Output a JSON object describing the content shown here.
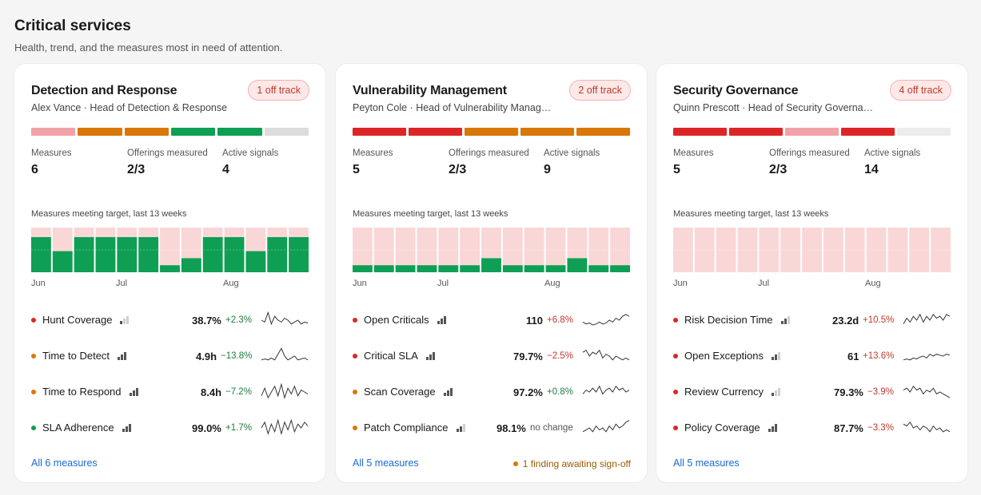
{
  "page": {
    "title": "Critical services",
    "subtitle": "Health, trend, and the measures most in need of attention."
  },
  "colors": {
    "red": "#dc2626",
    "red_light": "#f2a1a8",
    "orange": "#d97706",
    "green": "#0f9f54",
    "grey": "#dcdcdc",
    "grey_light": "#ececec",
    "trend_bg": "#f9d7d7",
    "trend_green": "#0f9f54"
  },
  "cards": [
    {
      "title": "Detection and Response",
      "owner": "Alex Vance · Head of Detection & Response",
      "badge": "1 off track",
      "health": [
        "red_light",
        "orange",
        "orange",
        "green",
        "green",
        "grey"
      ],
      "stats": {
        "measures_label": "Measures",
        "measures": "6",
        "offerings_label": "Offerings measured",
        "offerings": "2/3",
        "signals_label": "Active signals",
        "signals": "4"
      },
      "trend_label": "Measures meeting target, last 13 weeks",
      "trend": [
        1.0,
        0.6,
        1.0,
        1.0,
        1.0,
        1.0,
        0.2,
        0.4,
        1.0,
        1.0,
        0.6,
        1.0,
        1.0
      ],
      "months": [
        "Jun",
        "Jul",
        "Aug"
      ],
      "measures": [
        {
          "name": "Hunt Coverage",
          "dot": "red",
          "bars": 1,
          "value": "38.7%",
          "change": "+2.3%",
          "dir": "down",
          "spark": [
            0.5,
            0.4,
            0.9,
            0.3,
            0.7,
            0.5,
            0.4,
            0.6,
            0.5,
            0.3,
            0.4,
            0.5,
            0.3,
            0.4,
            0.35
          ]
        },
        {
          "name": "Time to Detect",
          "dot": "orange",
          "bars": 3,
          "value": "4.9h",
          "change": "−13.8%",
          "dir": "down",
          "spark": [
            0.3,
            0.35,
            0.3,
            0.4,
            0.3,
            0.6,
            0.9,
            0.5,
            0.3,
            0.4,
            0.5,
            0.3,
            0.35,
            0.4,
            0.3
          ]
        },
        {
          "name": "Time to Respond",
          "dot": "orange",
          "bars": 3,
          "value": "8.4h",
          "change": "−7.2%",
          "dir": "down",
          "spark": [
            0.3,
            0.7,
            0.2,
            0.5,
            0.8,
            0.3,
            0.9,
            0.2,
            0.7,
            0.4,
            0.8,
            0.3,
            0.6,
            0.5,
            0.4
          ]
        },
        {
          "name": "SLA Adherence",
          "dot": "green",
          "bars": 3,
          "value": "99.0%",
          "change": "+1.7%",
          "dir": "down",
          "spark": [
            0.5,
            0.8,
            0.2,
            0.7,
            0.3,
            0.9,
            0.2,
            0.8,
            0.4,
            0.9,
            0.3,
            0.7,
            0.5,
            0.8,
            0.6
          ]
        }
      ],
      "footer_link": "All 6 measures",
      "footer_note": ""
    },
    {
      "title": "Vulnerability Management",
      "owner": "Peyton Cole · Head of Vulnerability Manag…",
      "badge": "2 off track",
      "health": [
        "red",
        "red",
        "orange",
        "orange",
        "orange"
      ],
      "stats": {
        "measures_label": "Measures",
        "measures": "5",
        "offerings_label": "Offerings measured",
        "offerings": "2/3",
        "signals_label": "Active signals",
        "signals": "9"
      },
      "trend_label": "Measures meeting target, last 13 weeks",
      "trend": [
        0.2,
        0.2,
        0.2,
        0.2,
        0.2,
        0.2,
        0.4,
        0.2,
        0.2,
        0.2,
        0.4,
        0.2,
        0.2
      ],
      "months": [
        "Jun",
        "Jul",
        "Aug"
      ],
      "measures": [
        {
          "name": "Open Criticals",
          "dot": "red",
          "bars": 3,
          "value": "110",
          "change": "+6.8%",
          "dir": "up",
          "spark": [
            0.4,
            0.3,
            0.35,
            0.25,
            0.3,
            0.4,
            0.3,
            0.35,
            0.5,
            0.4,
            0.6,
            0.5,
            0.7,
            0.8,
            0.7
          ]
        },
        {
          "name": "Critical SLA",
          "dot": "red",
          "bars": 3,
          "value": "79.7%",
          "change": "−2.5%",
          "dir": "up",
          "spark": [
            0.7,
            0.8,
            0.5,
            0.7,
            0.6,
            0.8,
            0.4,
            0.6,
            0.5,
            0.3,
            0.5,
            0.4,
            0.3,
            0.4,
            0.3
          ]
        },
        {
          "name": "Scan Coverage",
          "dot": "orange",
          "bars": 3,
          "value": "97.2%",
          "change": "+0.8%",
          "dir": "down",
          "spark": [
            0.4,
            0.6,
            0.5,
            0.7,
            0.5,
            0.8,
            0.4,
            0.6,
            0.7,
            0.5,
            0.8,
            0.6,
            0.7,
            0.5,
            0.6
          ]
        },
        {
          "name": "Patch Compliance",
          "dot": "orange",
          "bars": 2,
          "value": "98.1%",
          "change": "no change",
          "dir": "neutral",
          "spark": [
            0.3,
            0.4,
            0.5,
            0.3,
            0.6,
            0.4,
            0.5,
            0.3,
            0.6,
            0.4,
            0.7,
            0.5,
            0.6,
            0.8,
            0.9
          ]
        }
      ],
      "footer_link": "All 5 measures",
      "footer_note": "1 finding awaiting sign-off"
    },
    {
      "title": "Security Governance",
      "owner": "Quinn Prescott · Head of Security Governa…",
      "badge": "4 off track",
      "health": [
        "red",
        "red",
        "red_light",
        "red",
        "grey_light"
      ],
      "stats": {
        "measures_label": "Measures",
        "measures": "5",
        "offerings_label": "Offerings measured",
        "offerings": "2/3",
        "signals_label": "Active signals",
        "signals": "14"
      },
      "trend_label": "Measures meeting target, last 13 weeks",
      "trend": [
        0,
        0,
        0,
        0,
        0,
        0,
        0,
        0,
        0,
        0,
        0,
        0,
        0
      ],
      "months": [
        "Jun",
        "Jul",
        "Aug"
      ],
      "measures": [
        {
          "name": "Risk Decision Time",
          "dot": "red",
          "bars": 2,
          "value": "23.2d",
          "change": "+10.5%",
          "dir": "up",
          "spark": [
            0.3,
            0.6,
            0.4,
            0.7,
            0.5,
            0.8,
            0.4,
            0.7,
            0.5,
            0.8,
            0.6,
            0.7,
            0.5,
            0.8,
            0.7
          ]
        },
        {
          "name": "Open Exceptions",
          "dot": "red",
          "bars": 2,
          "value": "61",
          "change": "+13.6%",
          "dir": "up",
          "spark": [
            0.3,
            0.35,
            0.3,
            0.4,
            0.35,
            0.45,
            0.5,
            0.4,
            0.6,
            0.5,
            0.6,
            0.55,
            0.5,
            0.6,
            0.55
          ]
        },
        {
          "name": "Review Currency",
          "dot": "red",
          "bars": 1,
          "value": "79.3%",
          "change": "−3.9%",
          "dir": "up",
          "spark": [
            0.6,
            0.7,
            0.5,
            0.8,
            0.6,
            0.7,
            0.4,
            0.6,
            0.5,
            0.7,
            0.4,
            0.5,
            0.4,
            0.3,
            0.2
          ]
        },
        {
          "name": "Policy Coverage",
          "dot": "red",
          "bars": 3,
          "value": "87.7%",
          "change": "−3.3%",
          "dir": "up",
          "spark": [
            0.7,
            0.6,
            0.8,
            0.5,
            0.6,
            0.4,
            0.6,
            0.5,
            0.3,
            0.6,
            0.4,
            0.5,
            0.3,
            0.4,
            0.3
          ]
        }
      ],
      "footer_link": "All 5 measures",
      "footer_note": ""
    }
  ]
}
